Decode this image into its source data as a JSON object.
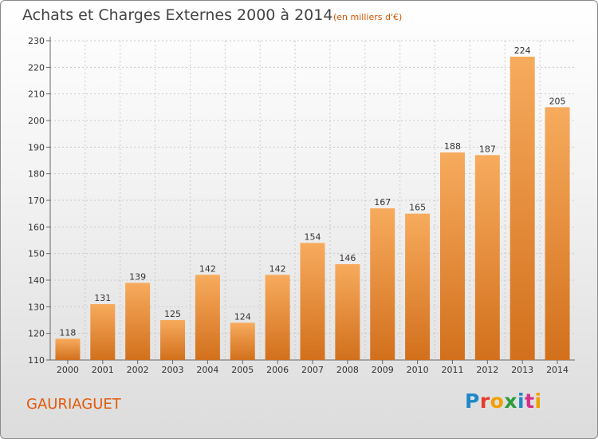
{
  "header": {
    "title": "Achats et Charges Externes 2000 à 2014",
    "unit": "(en milliers d'€)"
  },
  "footer": {
    "location": "GAURIAGUET",
    "logo_text": "Proxiti",
    "logo_colors": [
      "#1e88c8",
      "#e63c2c",
      "#f0a000",
      "#2a9d3a",
      "#1e88c8",
      "#d4308a",
      "#f0a000"
    ]
  },
  "colors": {
    "bar_light": "#f7ab5d",
    "bar_dark": "#d2701c",
    "grid": "#c9c9c9",
    "axis": "#666666",
    "text": "#333333"
  },
  "chart_data": {
    "type": "bar",
    "categories": [
      "2000",
      "2001",
      "2002",
      "2003",
      "2004",
      "2005",
      "2006",
      "2007",
      "2008",
      "2009",
      "2010",
      "2011",
      "2012",
      "2013",
      "2014"
    ],
    "values": [
      118,
      131,
      139,
      125,
      142,
      124,
      142,
      154,
      146,
      167,
      165,
      188,
      187,
      224,
      205
    ],
    "ylim": [
      110,
      230
    ],
    "yticks": [
      110,
      120,
      130,
      140,
      150,
      160,
      170,
      180,
      190,
      200,
      210,
      220,
      230
    ],
    "grid": true,
    "legend": "none"
  }
}
